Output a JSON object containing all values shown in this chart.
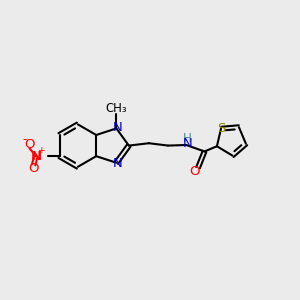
{
  "bg_color": "#ebebeb",
  "bond_color": "#000000",
  "N_color": "#0000cc",
  "O_color": "#ff0000",
  "S_color": "#888800",
  "H_color": "#4a9090",
  "line_width": 1.5,
  "font_size": 9.5,
  "xlim": [
    0,
    10
  ],
  "ylim": [
    0,
    10
  ]
}
